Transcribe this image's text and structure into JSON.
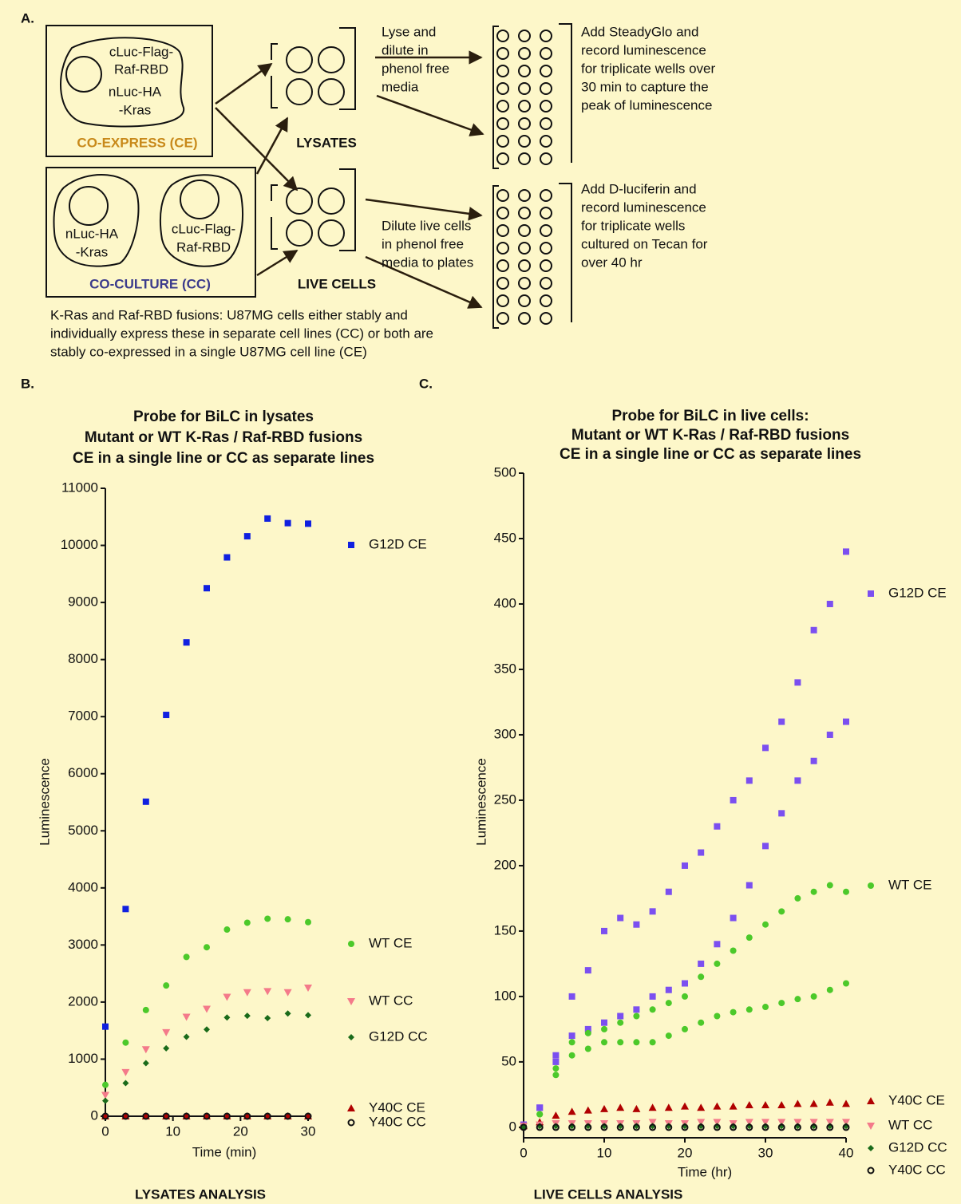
{
  "diagram": {
    "panel": "A.",
    "ce_cell": [
      "cLuc-Flag-",
      "Raf-RBD",
      "nLuc-HA",
      "-Kras"
    ],
    "ce_title": "CO-EXPRESS (CE)",
    "cc_cell_1": [
      "nLuc-HA",
      "-Kras"
    ],
    "cc_cell_2": [
      "cLuc-Flag-",
      "Raf-RBD"
    ],
    "cc_title": "CO-CULTURE (CC)",
    "lysates": "LYSATES",
    "live_cells": "LIVE CELLS",
    "lyse_step": [
      "Lyse and",
      "dilute in",
      "phenol free",
      "media"
    ],
    "dilute_step": [
      "Dilute live cells",
      "in phenol free",
      "media to plates"
    ],
    "lysate_readout": [
      "Add SteadyGlo and",
      "record luminescence",
      "for triplicate wells over",
      "30 min to capture the",
      "peak of luminescence"
    ],
    "live_readout": [
      "Add D-luciferin and",
      "record luminescence",
      "for triplicate wells",
      "cultured on Tecan for",
      "over 40 hr"
    ],
    "note": [
      "K-Ras and Raf-RBD fusions:  U87MG cells either stably and",
      "individually express these in separate cell lines (CC) or both are",
      "stably co-expressed in a single U87MG cell line (CE)"
    ]
  },
  "chart_data": [
    {
      "type": "scatter",
      "panel": "B.",
      "title": [
        "Probe for BiLC in lysates",
        "Mutant or WT K-Ras / Raf-RBD fusions",
        "CE in a single line or CC as separate lines"
      ],
      "xlabel": "Time (min)",
      "ylabel": "Luminescence",
      "caption": "LYSATES ANALYSIS",
      "x": [
        0,
        3,
        6,
        9,
        12,
        15,
        18,
        21,
        24,
        27,
        30
      ],
      "xlim": [
        0,
        30
      ],
      "xticks": [
        0,
        10,
        20,
        30
      ],
      "ylim": [
        0,
        11000
      ],
      "yticks": [
        0,
        1000,
        2000,
        3000,
        4000,
        5000,
        6000,
        7000,
        8000,
        9000,
        10000,
        11000
      ],
      "series": [
        {
          "name": "G12D CE",
          "color": "#1020e0",
          "marker": "square",
          "values": [
            1570,
            3630,
            5510,
            7030,
            8300,
            9250,
            9790,
            10160,
            10470,
            10390,
            10380
          ]
        },
        {
          "name": "WT CE",
          "color": "#4cc92a",
          "marker": "circle",
          "values": [
            550,
            1290,
            1860,
            2290,
            2790,
            2960,
            3270,
            3390,
            3460,
            3450,
            3400
          ]
        },
        {
          "name": "WT CC",
          "color": "#f47a8a",
          "marker": "triangle-down",
          "values": [
            370,
            770,
            1170,
            1470,
            1740,
            1880,
            2090,
            2170,
            2190,
            2170,
            2250
          ]
        },
        {
          "name": "G12D CC",
          "color": "#1a6b1a",
          "marker": "diamond",
          "values": [
            270,
            580,
            930,
            1190,
            1390,
            1520,
            1730,
            1760,
            1720,
            1800,
            1770
          ]
        },
        {
          "name": "Y40C CE",
          "color": "#b00000",
          "marker": "triangle",
          "values": [
            0,
            0,
            0,
            0,
            0,
            0,
            0,
            0,
            0,
            0,
            0
          ]
        },
        {
          "name": "Y40C CC",
          "color": "#111111",
          "marker": "open-circle",
          "values": [
            0,
            0,
            0,
            0,
            0,
            0,
            0,
            0,
            0,
            0,
            0
          ]
        }
      ]
    },
    {
      "type": "scatter",
      "panel": "C.",
      "title": [
        "Probe for BiLC in live cells:",
        "Mutant or WT K-Ras / Raf-RBD fusions",
        "CE in a single line or CC as separate lines"
      ],
      "xlabel": "Time (hr)",
      "ylabel": "Luminescence",
      "caption": "LIVE CELLS ANALYSIS",
      "xlim": [
        0,
        40
      ],
      "xticks": [
        0,
        10,
        20,
        30,
        40
      ],
      "ylim": [
        -8,
        500
      ],
      "yticks": [
        0,
        50,
        100,
        150,
        200,
        250,
        300,
        350,
        400,
        450,
        500
      ],
      "series": [
        {
          "name": "G12D CE",
          "color": "#7b4ff0",
          "marker": "square",
          "x": [
            0,
            2,
            4,
            6,
            8,
            10,
            12,
            14,
            16,
            18,
            20,
            22,
            24,
            26,
            28,
            30,
            32,
            34,
            36,
            38,
            40,
            0,
            2,
            4,
            6,
            8,
            10,
            12,
            14,
            16,
            18,
            20,
            22,
            24,
            26,
            28,
            30,
            32,
            34,
            36,
            38,
            40
          ],
          "values": [
            2,
            15,
            55,
            100,
            120,
            150,
            160,
            155,
            165,
            180,
            200,
            210,
            230,
            250,
            265,
            290,
            310,
            340,
            380,
            400,
            440,
            2,
            15,
            50,
            70,
            75,
            80,
            85,
            90,
            100,
            105,
            110,
            125,
            140,
            160,
            185,
            215,
            240,
            265,
            280,
            300,
            310
          ]
        },
        {
          "name": "WT CE",
          "color": "#4cc92a",
          "marker": "circle",
          "x": [
            0,
            2,
            4,
            6,
            8,
            10,
            12,
            14,
            16,
            18,
            20,
            22,
            24,
            26,
            28,
            30,
            32,
            34,
            36,
            38,
            40,
            0,
            2,
            4,
            6,
            8,
            10,
            12,
            14,
            16,
            18,
            20,
            22,
            24,
            26,
            28,
            30,
            32,
            34,
            36,
            38,
            40
          ],
          "values": [
            1,
            10,
            45,
            65,
            72,
            75,
            80,
            85,
            90,
            95,
            100,
            115,
            125,
            135,
            145,
            155,
            165,
            175,
            180,
            185,
            180,
            1,
            10,
            40,
            55,
            60,
            65,
            65,
            65,
            65,
            70,
            75,
            80,
            85,
            88,
            90,
            92,
            95,
            98,
            100,
            105,
            110
          ]
        },
        {
          "name": "Y40C CE",
          "color": "#b00000",
          "marker": "triangle",
          "x": [
            0,
            2,
            4,
            6,
            8,
            10,
            12,
            14,
            16,
            18,
            20,
            22,
            24,
            26,
            28,
            30,
            32,
            34,
            36,
            38,
            40
          ],
          "values": [
            1,
            4,
            9,
            12,
            13,
            14,
            15,
            14,
            15,
            15,
            16,
            15,
            16,
            16,
            17,
            17,
            17,
            18,
            18,
            19,
            18
          ]
        },
        {
          "name": "WT CC",
          "color": "#f47a8a",
          "marker": "triangle-down",
          "x": [
            0,
            2,
            4,
            6,
            8,
            10,
            12,
            14,
            16,
            18,
            20,
            22,
            24,
            26,
            28,
            30,
            32,
            34,
            36,
            38,
            40
          ],
          "values": [
            1,
            2,
            3,
            3,
            3,
            3,
            3,
            3,
            4,
            3,
            3,
            4,
            4,
            3,
            4,
            4,
            4,
            4,
            4,
            4,
            4
          ]
        },
        {
          "name": "G12D CC",
          "color": "#1a6b1a",
          "marker": "diamond",
          "x": [
            0,
            2,
            4,
            6,
            8,
            10,
            12,
            14,
            16,
            18,
            20,
            22,
            24,
            26,
            28,
            30,
            32,
            34,
            36,
            38,
            40
          ],
          "values": [
            0,
            1,
            1,
            1,
            1,
            1,
            1,
            1,
            1,
            1,
            1,
            1,
            1,
            1,
            1,
            1,
            1,
            1,
            1,
            1,
            1
          ]
        },
        {
          "name": "Y40C CC",
          "color": "#111111",
          "marker": "open-circle",
          "x": [
            0,
            2,
            4,
            6,
            8,
            10,
            12,
            14,
            16,
            18,
            20,
            22,
            24,
            26,
            28,
            30,
            32,
            34,
            36,
            38,
            40
          ],
          "values": [
            0,
            0,
            0,
            0,
            0,
            0,
            0,
            0,
            0,
            0,
            0,
            0,
            0,
            0,
            0,
            0,
            0,
            0,
            0,
            0,
            0
          ]
        }
      ]
    }
  ]
}
